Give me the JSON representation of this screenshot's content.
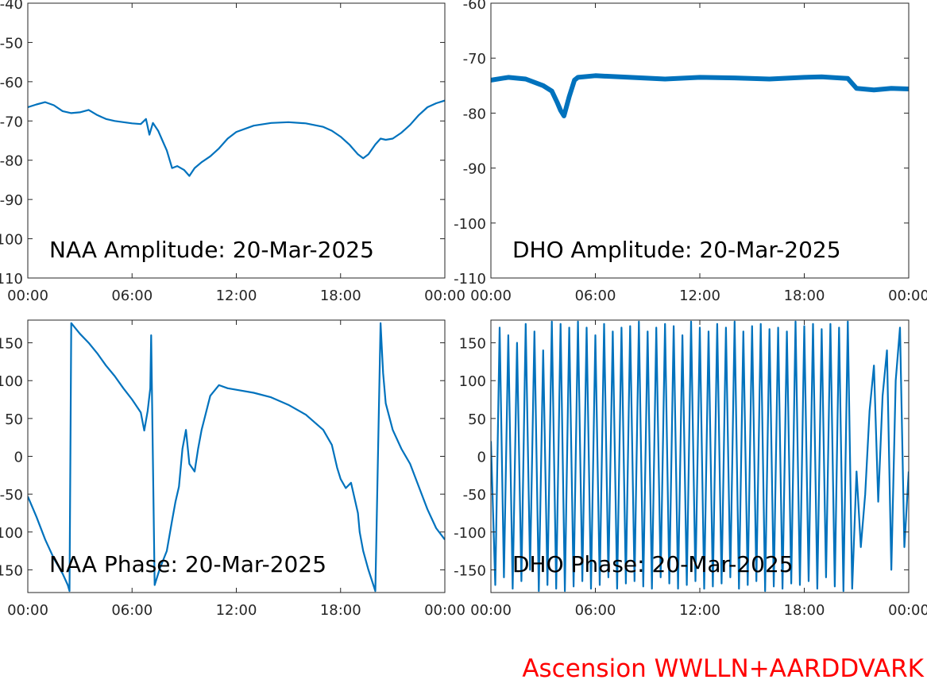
{
  "figure": {
    "station_label": "Ascension WWLLN+AARDDVARK",
    "line_color": "#0072bd",
    "label_color": "#ff0000"
  },
  "chart_data": [
    {
      "type": "line",
      "title": "NAA Amplitude: 20-Mar-2025",
      "xlim": [
        0,
        24
      ],
      "ylim": [
        -110,
        -40
      ],
      "xticks": [
        "00:00",
        "06:00",
        "12:00",
        "18:00",
        "00:00"
      ],
      "yticks": [
        "-40",
        "-50",
        "-60",
        "-70",
        "-80",
        "-90",
        "-100",
        "-110"
      ],
      "series": [
        {
          "x": [
            0,
            0.5,
            1.0,
            1.5,
            2.0,
            2.5,
            3.0,
            3.5,
            4.0,
            4.5,
            5.0,
            5.5,
            6.0,
            6.5,
            6.8,
            7.0,
            7.2,
            7.5,
            7.8,
            8.0,
            8.3,
            8.6,
            9.0,
            9.3,
            9.6,
            10.0,
            10.5,
            11.0,
            11.5,
            12.0,
            13.0,
            14.0,
            15.0,
            16.0,
            17.0,
            17.5,
            18.0,
            18.5,
            19.0,
            19.3,
            19.6,
            20.0,
            20.3,
            20.6,
            21.0,
            21.5,
            22.0,
            22.5,
            23.0,
            23.5,
            24.0
          ],
          "y": [
            -66.5,
            -65.8,
            -65.2,
            -66.0,
            -67.5,
            -68.0,
            -67.8,
            -67.2,
            -68.5,
            -69.5,
            -70.0,
            -70.3,
            -70.6,
            -70.8,
            -69.5,
            -73.5,
            -70.5,
            -72.5,
            -75.5,
            -77.5,
            -82.0,
            -81.5,
            -82.5,
            -84.0,
            -82.0,
            -80.5,
            -79.0,
            -77.0,
            -74.5,
            -72.8,
            -71.2,
            -70.5,
            -70.3,
            -70.6,
            -71.5,
            -72.5,
            -74.0,
            -76.0,
            -78.5,
            -79.5,
            -78.5,
            -76.0,
            -74.5,
            -74.8,
            -74.5,
            -73.0,
            -71.0,
            -68.5,
            -66.5,
            -65.5,
            -64.8
          ]
        }
      ]
    },
    {
      "type": "line",
      "title": "DHO Amplitude: 20-Mar-2025",
      "xlim": [
        0,
        24
      ],
      "ylim": [
        -110,
        -60
      ],
      "xticks": [
        "00:00",
        "06:00",
        "12:00",
        "18:00",
        "00:00"
      ],
      "yticks": [
        "-60",
        "-70",
        "-80",
        "-90",
        "-100",
        "-110"
      ],
      "series": [
        {
          "x": [
            0,
            1.0,
            2.0,
            3.0,
            3.5,
            3.8,
            4.0,
            4.2,
            4.5,
            4.8,
            5.0,
            6.0,
            8.0,
            10.0,
            12.0,
            14.0,
            16.0,
            18.0,
            19.0,
            20.0,
            20.5,
            21.0,
            22.0,
            23.0,
            24.0
          ],
          "y": [
            -74.0,
            -73.5,
            -73.8,
            -75.0,
            -76.0,
            -78.0,
            -79.5,
            -80.5,
            -77.0,
            -74.0,
            -73.5,
            -73.2,
            -73.5,
            -73.8,
            -73.5,
            -73.6,
            -73.8,
            -73.5,
            -73.4,
            -73.6,
            -73.7,
            -75.5,
            -75.8,
            -75.5,
            -75.6
          ]
        }
      ]
    },
    {
      "type": "line",
      "title": "NAA Phase: 20-Mar-2025",
      "xlim": [
        0,
        24
      ],
      "ylim": [
        -180,
        180
      ],
      "xticks": [
        "00:00",
        "06:00",
        "12:00",
        "18:00",
        "00:00"
      ],
      "yticks": [
        "150",
        "100",
        "50",
        "0",
        "-50",
        "-100",
        "-150"
      ],
      "series": [
        {
          "x": [
            0,
            0.5,
            1.0,
            1.5,
            2.0,
            2.3,
            2.4,
            2.5,
            3.0,
            3.5,
            4.0,
            4.5,
            5.0,
            5.5,
            6.0,
            6.5,
            6.7,
            6.9,
            7.05,
            7.1,
            7.3,
            7.6,
            8.0,
            8.3,
            8.5,
            8.7,
            8.9,
            9.1,
            9.3,
            9.6,
            9.8,
            10.0,
            10.5,
            11.0,
            11.5,
            12.0,
            13.0,
            14.0,
            15.0,
            16.0,
            17.0,
            17.5,
            17.8,
            18.0,
            18.3,
            18.6,
            19.0,
            19.1,
            19.3,
            19.6,
            20.0,
            20.3,
            20.4,
            20.45,
            20.6,
            21.0,
            21.5,
            22.0,
            22.5,
            23.0,
            23.5,
            24.0
          ],
          "y": [
            -53,
            -80,
            -110,
            -135,
            -155,
            -170,
            -178,
            176,
            162,
            150,
            136,
            120,
            106,
            90,
            75,
            58,
            34,
            60,
            90,
            160,
            -170,
            -148,
            -125,
            -85,
            -60,
            -40,
            10,
            35,
            -10,
            -20,
            10,
            35,
            80,
            94,
            90,
            88,
            84,
            78,
            68,
            55,
            35,
            15,
            -15,
            -30,
            -42,
            -35,
            -75,
            -100,
            -125,
            -150,
            -178,
            176,
            130,
            110,
            70,
            35,
            10,
            -10,
            -40,
            -70,
            -95,
            -110
          ]
        }
      ]
    },
    {
      "type": "line",
      "title": "DHO Phase: 20-Mar-2025",
      "xlim": [
        0,
        24
      ],
      "ylim": [
        -180,
        180
      ],
      "xticks": [
        "00:00",
        "06:00",
        "12:00",
        "18:00",
        "00:00"
      ],
      "yticks": [
        "150",
        "100",
        "50",
        "0",
        "-50",
        "-100",
        "-150"
      ],
      "series": [
        {
          "x": [
            0,
            0.25,
            0.5,
            0.75,
            1.0,
            1.25,
            1.5,
            1.75,
            2.0,
            2.25,
            2.5,
            2.75,
            3.0,
            3.25,
            3.5,
            3.75,
            4.0,
            4.25,
            4.5,
            4.75,
            5.0,
            5.25,
            5.5,
            5.75,
            6.0,
            6.25,
            6.5,
            6.75,
            7.0,
            7.25,
            7.5,
            7.75,
            8.0,
            8.25,
            8.5,
            8.75,
            9.0,
            9.25,
            9.5,
            9.75,
            10.0,
            10.25,
            10.5,
            10.75,
            11.0,
            11.25,
            11.5,
            11.75,
            12.0,
            12.25,
            12.5,
            12.75,
            13.0,
            13.25,
            13.5,
            13.75,
            14.0,
            14.25,
            14.5,
            14.75,
            15.0,
            15.25,
            15.5,
            15.75,
            16.0,
            16.25,
            16.5,
            16.75,
            17.0,
            17.25,
            17.5,
            17.75,
            18.0,
            18.25,
            18.5,
            18.75,
            19.0,
            19.25,
            19.5,
            19.75,
            20.0,
            20.25,
            20.5,
            20.75,
            21.0,
            21.25,
            21.5,
            21.75,
            22.0,
            22.25,
            22.5,
            22.75,
            23.0,
            23.25,
            23.5,
            23.75,
            24.0
          ],
          "y": [
            20,
            -170,
            170,
            -160,
            160,
            -175,
            150,
            -165,
            175,
            -150,
            165,
            -178,
            140,
            -170,
            178,
            -175,
            175,
            -178,
            170,
            -172,
            178,
            -165,
            170,
            -175,
            160,
            -170,
            175,
            -160,
            165,
            -175,
            170,
            -168,
            172,
            -165,
            178,
            -172,
            165,
            -175,
            170,
            -160,
            175,
            -168,
            172,
            -175,
            160,
            -170,
            178,
            -165,
            170,
            -175,
            165,
            -172,
            175,
            -168,
            170,
            -160,
            178,
            -175,
            165,
            -170,
            172,
            -165,
            175,
            -178,
            168,
            -172,
            170,
            -175,
            165,
            -168,
            178,
            -170,
            172,
            -165,
            175,
            -175,
            168,
            -160,
            175,
            -172,
            170,
            -178,
            178,
            -175,
            -20,
            -120,
            -50,
            60,
            120,
            -60,
            80,
            140,
            -150,
            100,
            170,
            -120,
            -20
          ]
        }
      ]
    }
  ]
}
